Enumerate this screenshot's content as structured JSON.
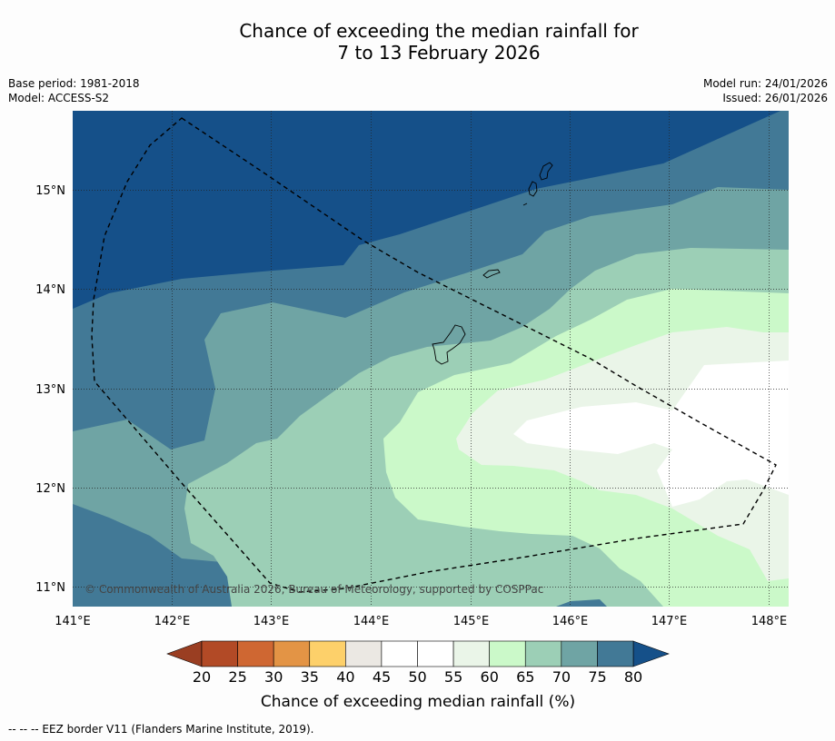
{
  "title": {
    "line1": "Chance of exceeding the median rainfall for",
    "line2": "7 to 13 February 2026"
  },
  "meta": {
    "base_period": "Base period: 1981-2018",
    "model": "Model: ACCESS-S2",
    "model_run": "Model run: 24/01/2026",
    "issued": "Issued: 26/01/2026"
  },
  "map": {
    "lon_labels": [
      "141°E",
      "142°E",
      "143°E",
      "144°E",
      "145°E",
      "146°E",
      "147°E",
      "148°E"
    ],
    "lat_labels": [
      "15°N",
      "14°N",
      "13°N",
      "12°N",
      "11°N"
    ],
    "credit": "© Commonwealth of Australia 2026, Bureau of Meteorology, supported by COSPPac"
  },
  "colorbar": {
    "ticks": [
      "20",
      "25",
      "30",
      "35",
      "40",
      "45",
      "50",
      "55",
      "60",
      "65",
      "70",
      "75",
      "80"
    ],
    "title": "Chance of exceeding median rainfall (%)",
    "under_color": "#9a3e22",
    "over_color": "#155089",
    "colors": [
      "#b24a26",
      "#cf6732",
      "#e39445",
      "#fdd06a",
      "#ebe8e3",
      "#ffffff",
      "#ffffff",
      "#eaf5e8",
      "#cbf9c9",
      "#9ccfb6",
      "#6fa4a4",
      "#427996"
    ]
  },
  "footnote": "-- -- -- EEZ border V11 (Flanders Marine Institute, 2019)."
}
